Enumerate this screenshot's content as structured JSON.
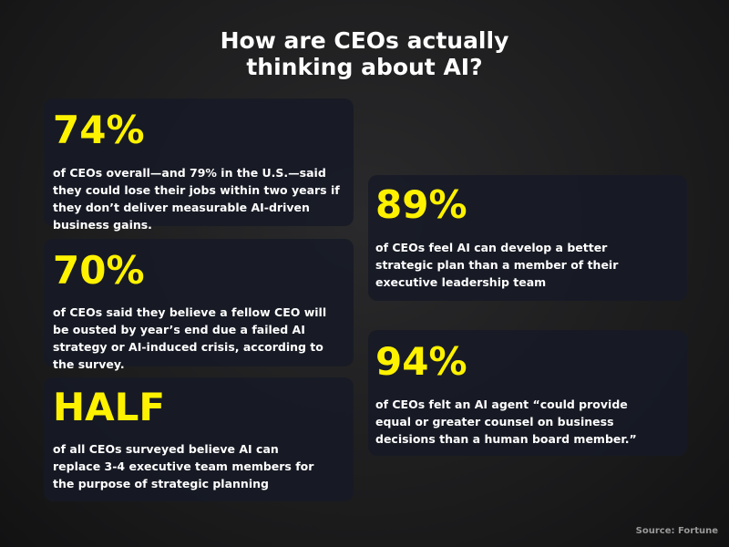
{
  "title": "How are CEOs actually thinking about AI?",
  "cards": [
    {
      "stat": "74%",
      "text": "of CEOs overall—and 79% in the U.S.—said they could lose their jobs within two years if they don’t deliver measurable AI-driven business gains."
    },
    {
      "stat": "70%",
      "text": "of CEOs said they believe a fellow CEO will be ousted by year’s end due a failed AI strategy or AI-induced crisis, according to the survey."
    },
    {
      "stat": "HALF",
      "text": "of all CEOs surveyed believe AI can replace 3-4 executive team members for the purpose of strategic planning"
    },
    {
      "stat": "89%",
      "text": "of CEOs feel AI can develop a better strategic plan than a member of their executive leadership team"
    },
    {
      "stat": "94%",
      "text": "of CEOs felt an AI agent “could provide equal or greater counsel on business decisions than a human board member.”"
    }
  ],
  "source": "Source: Fortune"
}
